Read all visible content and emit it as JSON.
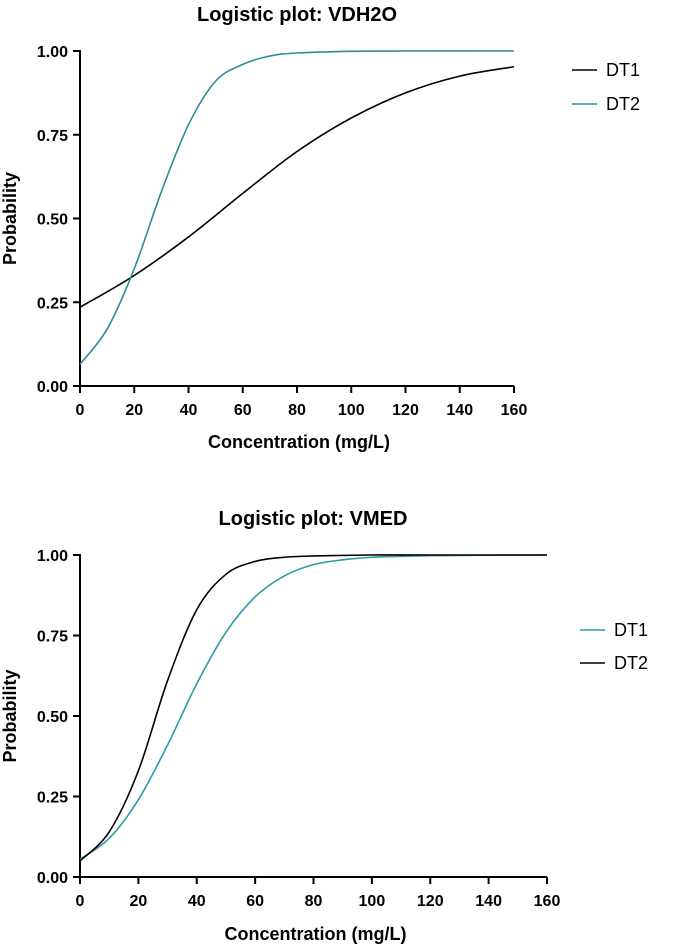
{
  "chart_data": [
    {
      "type": "line",
      "title": "Logistic plot: VDH2O",
      "xlabel": "Concentration (mg/L)",
      "ylabel": "Probability",
      "xlim": [
        0,
        160
      ],
      "ylim": [
        0,
        1
      ],
      "x_ticks": [
        "0",
        "20",
        "40",
        "60",
        "80",
        "100",
        "120",
        "140",
        "160"
      ],
      "y_ticks": [
        "0.00",
        "0.25",
        "0.50",
        "0.75",
        "1.00"
      ],
      "grid": false,
      "legend_position": "right",
      "series": [
        {
          "name": "DT1",
          "color": "#000000",
          "x": [
            0,
            20,
            40,
            60,
            80,
            100,
            120,
            140,
            160
          ],
          "y": [
            0.235,
            0.33,
            0.445,
            0.575,
            0.7,
            0.8,
            0.875,
            0.925,
            0.953
          ]
        },
        {
          "name": "DT2",
          "color": "#2E8B9A",
          "x": [
            0,
            10,
            20,
            30,
            40,
            50,
            60,
            70,
            80,
            100,
            120,
            160
          ],
          "y": [
            0.065,
            0.17,
            0.35,
            0.58,
            0.78,
            0.91,
            0.96,
            0.985,
            0.994,
            0.999,
            1.0,
            1.0
          ]
        }
      ]
    },
    {
      "type": "line",
      "title": "Logistic plot: VMED",
      "xlabel": "Concentration (mg/L)",
      "ylabel": "Probability",
      "xlim": [
        0,
        160
      ],
      "ylim": [
        0,
        1
      ],
      "x_ticks": [
        "0",
        "20",
        "40",
        "60",
        "80",
        "100",
        "120",
        "140",
        "160"
      ],
      "y_ticks": [
        "0.00",
        "0.25",
        "0.50",
        "0.75",
        "1.00"
      ],
      "grid": false,
      "legend_position": "right",
      "series": [
        {
          "name": "DT1",
          "color": "#2E9AA6",
          "x": [
            0,
            10,
            20,
            30,
            40,
            50,
            60,
            70,
            80,
            90,
            100,
            120,
            160
          ],
          "y": [
            0.055,
            0.12,
            0.24,
            0.41,
            0.6,
            0.76,
            0.87,
            0.935,
            0.97,
            0.985,
            0.993,
            0.998,
            1.0
          ]
        },
        {
          "name": "DT2",
          "color": "#000000",
          "x": [
            0,
            10,
            20,
            30,
            40,
            50,
            60,
            70,
            80,
            100,
            120,
            160
          ],
          "y": [
            0.05,
            0.14,
            0.33,
            0.61,
            0.83,
            0.94,
            0.98,
            0.993,
            0.997,
            1.0,
            1.0,
            1.0
          ]
        }
      ]
    }
  ]
}
